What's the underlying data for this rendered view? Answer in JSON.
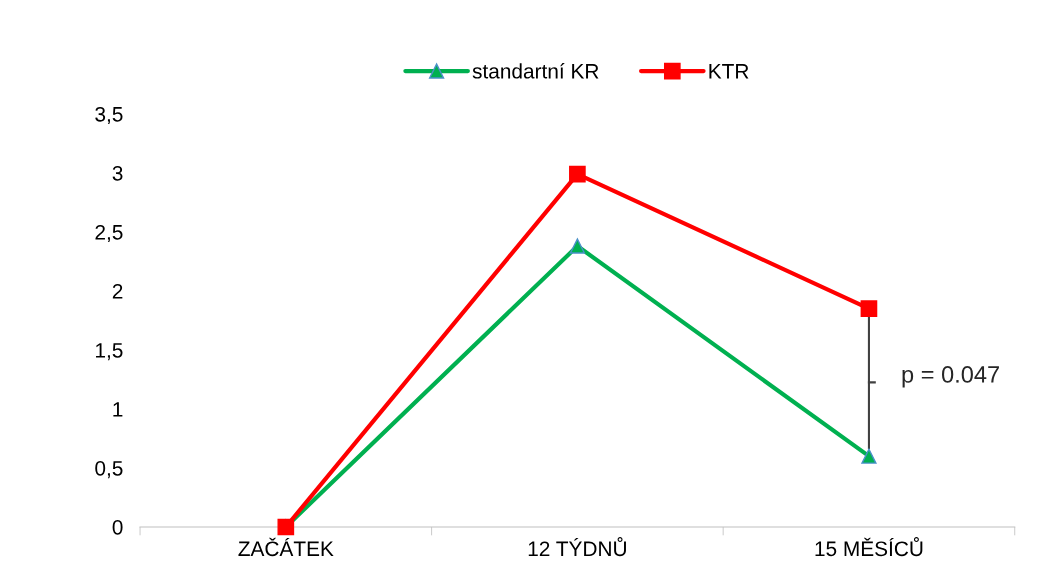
{
  "chart_data": {
    "type": "line",
    "categories": [
      "ZAČÁTEK",
      "12 TÝDNŮ",
      "15 MĚSÍCŮ"
    ],
    "series": [
      {
        "name": "standartní KR",
        "color": "#00b050",
        "values": [
          0,
          2.38,
          0.6
        ],
        "marker": "triangle"
      },
      {
        "name": "KTR",
        "color": "#ff0000",
        "values": [
          0,
          2.99,
          1.85
        ],
        "marker": "square"
      }
    ],
    "ylim": [
      0,
      3.5
    ],
    "yticks": [
      0,
      {
        "value": 0.5,
        "label": "0,5"
      },
      1,
      {
        "value": 1.5,
        "label": "1,5"
      },
      2,
      {
        "value": 2.5,
        "label": "2,5"
      },
      3,
      {
        "value": 3.5,
        "label": "3,5"
      }
    ],
    "annotations": [
      "p = 0.047"
    ],
    "legend": "top",
    "grid": false
  }
}
